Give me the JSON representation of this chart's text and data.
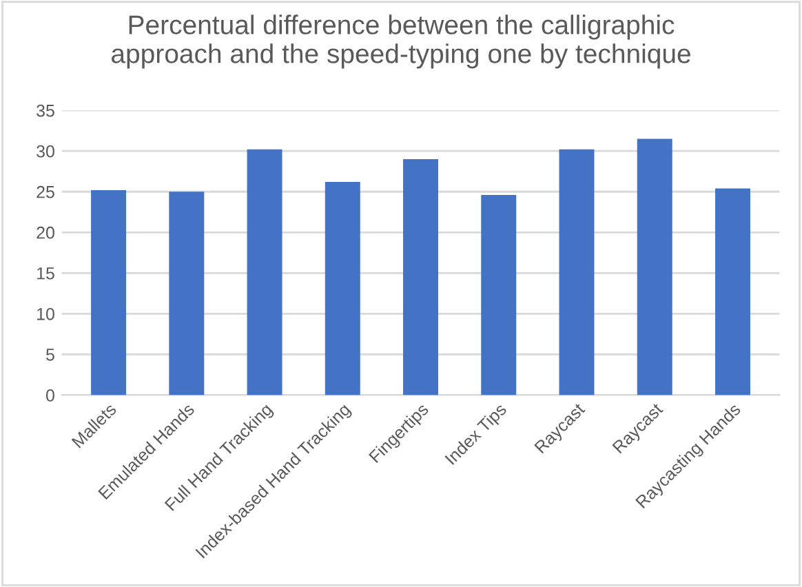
{
  "chart_data": {
    "type": "bar",
    "title": "Percentual difference between the calligraphic\napproach and the speed-typing one by technique",
    "categories": [
      "Mallets",
      "Emulated Hands",
      "Full Hand Tracking",
      "Index-based Hand Tracking",
      "Fingertips",
      "Index Tips",
      "Raycast",
      "Raycast",
      "Raycasting Hands"
    ],
    "values": [
      25.2,
      25.0,
      30.2,
      26.2,
      29.0,
      24.6,
      30.2,
      31.5,
      25.4
    ],
    "color": "#4472c4",
    "ylim": [
      0,
      35
    ],
    "yticks": [
      0,
      5,
      10,
      15,
      20,
      25,
      30,
      35
    ],
    "grid": "y"
  }
}
